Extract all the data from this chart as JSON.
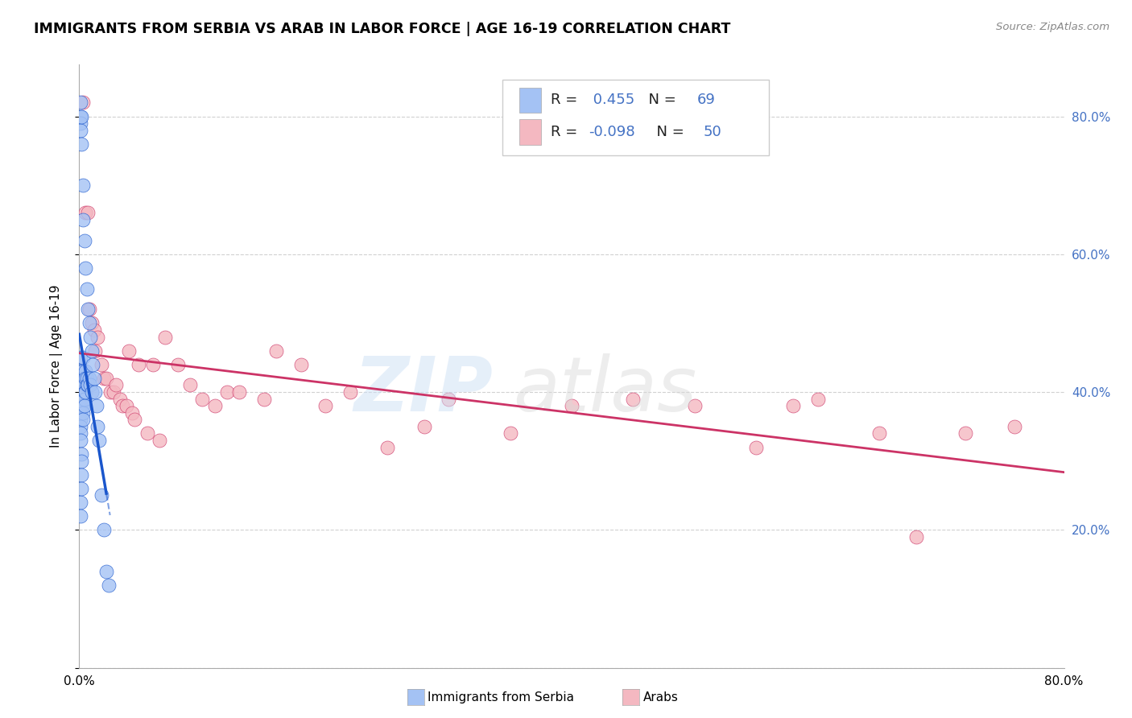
{
  "title": "IMMIGRANTS FROM SERBIA VS ARAB IN LABOR FORCE | AGE 16-19 CORRELATION CHART",
  "source": "Source: ZipAtlas.com",
  "ylabel": "In Labor Force | Age 16-19",
  "serbia_R": 0.455,
  "serbia_N": 69,
  "arab_R": -0.098,
  "arab_N": 50,
  "serbia_color": "#a4c2f4",
  "arab_color": "#f4b8c1",
  "serbia_trend_color": "#1a56cc",
  "arab_trend_color": "#cc3366",
  "legend_label_serbia": "Immigrants from Serbia",
  "legend_label_arab": "Arabs",
  "xmin": 0.0,
  "xmax": 0.8,
  "ymin": 0.0,
  "ymax": 0.875,
  "serbia_x": [
    0.001,
    0.001,
    0.001,
    0.001,
    0.001,
    0.001,
    0.001,
    0.001,
    0.001,
    0.001,
    0.001,
    0.001,
    0.001,
    0.001,
    0.001,
    0.001,
    0.002,
    0.002,
    0.002,
    0.002,
    0.002,
    0.002,
    0.002,
    0.002,
    0.002,
    0.003,
    0.003,
    0.003,
    0.003,
    0.003,
    0.003,
    0.003,
    0.003,
    0.003,
    0.004,
    0.004,
    0.004,
    0.004,
    0.004,
    0.004,
    0.005,
    0.005,
    0.005,
    0.005,
    0.006,
    0.006,
    0.006,
    0.007,
    0.007,
    0.008,
    0.008,
    0.009,
    0.009,
    0.01,
    0.01,
    0.011,
    0.012,
    0.013,
    0.014,
    0.015,
    0.016,
    0.018,
    0.02,
    0.022,
    0.024,
    0.001,
    0.001,
    0.002,
    0.002
  ],
  "serbia_y": [
    0.82,
    0.8,
    0.79,
    0.78,
    0.45,
    0.43,
    0.42,
    0.41,
    0.4,
    0.39,
    0.38,
    0.37,
    0.36,
    0.35,
    0.34,
    0.33,
    0.8,
    0.76,
    0.42,
    0.41,
    0.4,
    0.39,
    0.38,
    0.31,
    0.3,
    0.7,
    0.65,
    0.45,
    0.43,
    0.4,
    0.39,
    0.38,
    0.37,
    0.36,
    0.62,
    0.42,
    0.41,
    0.4,
    0.39,
    0.38,
    0.58,
    0.43,
    0.42,
    0.4,
    0.55,
    0.42,
    0.41,
    0.52,
    0.41,
    0.5,
    0.42,
    0.48,
    0.41,
    0.46,
    0.4,
    0.44,
    0.42,
    0.4,
    0.38,
    0.35,
    0.33,
    0.25,
    0.2,
    0.14,
    0.12,
    0.24,
    0.22,
    0.28,
    0.26
  ],
  "arab_x": [
    0.003,
    0.005,
    0.007,
    0.008,
    0.01,
    0.012,
    0.013,
    0.015,
    0.018,
    0.02,
    0.022,
    0.025,
    0.028,
    0.03,
    0.033,
    0.035,
    0.038,
    0.04,
    0.043,
    0.045,
    0.048,
    0.055,
    0.06,
    0.065,
    0.07,
    0.08,
    0.09,
    0.1,
    0.11,
    0.12,
    0.13,
    0.15,
    0.16,
    0.18,
    0.2,
    0.22,
    0.25,
    0.28,
    0.3,
    0.35,
    0.4,
    0.45,
    0.5,
    0.55,
    0.58,
    0.6,
    0.65,
    0.68,
    0.72,
    0.76
  ],
  "arab_y": [
    0.82,
    0.66,
    0.66,
    0.52,
    0.5,
    0.49,
    0.46,
    0.48,
    0.44,
    0.42,
    0.42,
    0.4,
    0.4,
    0.41,
    0.39,
    0.38,
    0.38,
    0.46,
    0.37,
    0.36,
    0.44,
    0.34,
    0.44,
    0.33,
    0.48,
    0.44,
    0.41,
    0.39,
    0.38,
    0.4,
    0.4,
    0.39,
    0.46,
    0.44,
    0.38,
    0.4,
    0.32,
    0.35,
    0.39,
    0.34,
    0.38,
    0.39,
    0.38,
    0.32,
    0.38,
    0.39,
    0.34,
    0.19,
    0.34,
    0.35
  ],
  "ytick_values": [
    0.0,
    0.2,
    0.4,
    0.6,
    0.8
  ],
  "ytick_right_labels": [
    "",
    "20.0%",
    "40.0%",
    "60.0%",
    "80.0%"
  ],
  "xtick_values": [
    0.0,
    0.1,
    0.2,
    0.3,
    0.4,
    0.5,
    0.6,
    0.7,
    0.8
  ],
  "xtick_labels": [
    "0.0%",
    "",
    "",
    "",
    "",
    "",
    "",
    "",
    "80.0%"
  ],
  "grid_color": "#cccccc",
  "background_color": "#ffffff",
  "right_axis_color": "#4472c4",
  "label_color_rn_black": "#222222",
  "label_color_rn_blue": "#4472c4"
}
